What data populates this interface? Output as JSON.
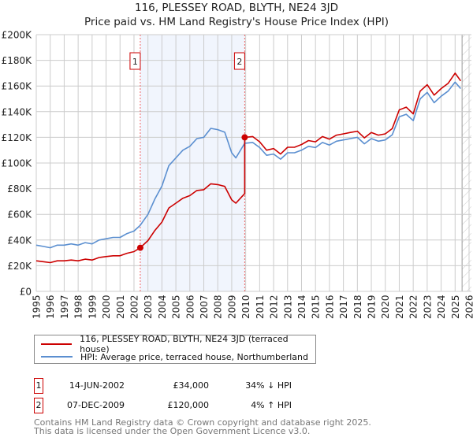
{
  "chart_data": {
    "type": "line",
    "title": "116, PLESSEY ROAD, BLYTH, NE24 3JD",
    "subtitle": "Price paid vs. HM Land Registry's House Price Index (HPI)",
    "xlim": [
      1995,
      2026
    ],
    "ylim": [
      0,
      200000
    ],
    "x_ticks": [
      "1995",
      "1996",
      "1997",
      "1998",
      "1999",
      "2000",
      "2001",
      "2002",
      "2003",
      "2004",
      "2005",
      "2006",
      "2007",
      "2008",
      "2009",
      "2010",
      "2011",
      "2012",
      "2013",
      "2014",
      "2015",
      "2016",
      "2017",
      "2018",
      "2019",
      "2020",
      "2021",
      "2022",
      "2023",
      "2024",
      "2025",
      "2026"
    ],
    "y_ticks": [
      {
        "value": 0,
        "label": "£0"
      },
      {
        "value": 20000,
        "label": "£20K"
      },
      {
        "value": 40000,
        "label": "£40K"
      },
      {
        "value": 60000,
        "label": "£60K"
      },
      {
        "value": 80000,
        "label": "£80K"
      },
      {
        "value": 100000,
        "label": "£100K"
      },
      {
        "value": 120000,
        "label": "£120K"
      },
      {
        "value": 140000,
        "label": "£140K"
      },
      {
        "value": 160000,
        "label": "£160K"
      },
      {
        "value": 180000,
        "label": "£180K"
      },
      {
        "value": 200000,
        "label": "£200K"
      }
    ],
    "grid": true,
    "shaded_period": [
      2002.45,
      2009.93
    ],
    "forecast_hatch_from": 2025.5,
    "series": [
      {
        "name": "116, PLESSEY ROAD, BLYTH, NE24 3JD (terraced house)",
        "color": "#cc0000",
        "x": [
          1995,
          1995.5,
          1996,
          1996.5,
          1997,
          1997.5,
          1998,
          1998.5,
          1999,
          1999.5,
          2000,
          2000.5,
          2001,
          2001.5,
          2002,
          2002.45,
          2003,
          2003.5,
          2004,
          2004.5,
          2005,
          2005.5,
          2006,
          2006.5,
          2007,
          2007.5,
          2008,
          2008.5,
          2009,
          2009.3,
          2009.93,
          2009.93,
          2010.5,
          2011,
          2011.5,
          2012,
          2012.5,
          2013,
          2013.5,
          2014,
          2014.5,
          2015,
          2015.5,
          2016,
          2016.5,
          2017,
          2017.5,
          2018,
          2018.5,
          2019,
          2019.5,
          2020,
          2020.5,
          2021,
          2021.5,
          2022,
          2022.5,
          2023,
          2023.5,
          2024,
          2024.5,
          2025,
          2025.4
        ],
        "y": [
          23800,
          23100,
          22400,
          23800,
          23800,
          24400,
          23800,
          25100,
          24400,
          26400,
          27100,
          27700,
          27700,
          29700,
          31000,
          34000,
          39600,
          47500,
          54000,
          65000,
          68700,
          72600,
          74600,
          78600,
          79200,
          83800,
          83200,
          81800,
          71300,
          68700,
          76200,
          120000,
          120600,
          116500,
          110000,
          111300,
          107000,
          112300,
          112300,
          114400,
          117500,
          116500,
          120600,
          118600,
          121700,
          122700,
          123800,
          124800,
          119600,
          123800,
          121700,
          122700,
          126900,
          141400,
          143500,
          138300,
          156000,
          161000,
          152900,
          158000,
          162000,
          170000,
          164000
        ]
      },
      {
        "name": "HPI: Average price, terraced house, Northumberland",
        "color": "#5b8fd0",
        "x": [
          1995,
          1995.5,
          1996,
          1996.5,
          1997,
          1997.5,
          1998,
          1998.5,
          1999,
          1999.5,
          2000,
          2000.5,
          2001,
          2001.5,
          2002,
          2002.45,
          2003,
          2003.5,
          2004,
          2004.5,
          2005,
          2005.5,
          2006,
          2006.5,
          2007,
          2007.5,
          2008,
          2008.5,
          2009,
          2009.3,
          2009.93,
          2010.5,
          2011,
          2011.5,
          2012,
          2012.5,
          2013,
          2013.5,
          2014,
          2014.5,
          2015,
          2015.5,
          2016,
          2016.5,
          2017,
          2017.5,
          2018,
          2018.5,
          2019,
          2019.5,
          2020,
          2020.5,
          2021,
          2021.5,
          2022,
          2022.5,
          2023,
          2023.5,
          2024,
          2024.5,
          2025,
          2025.4
        ],
        "y": [
          36000,
          35000,
          34000,
          36000,
          36000,
          37000,
          36000,
          38000,
          37000,
          40000,
          41000,
          42000,
          42000,
          45000,
          47000,
          51500,
          60000,
          72000,
          82000,
          98000,
          104000,
          110000,
          113000,
          119000,
          120000,
          127000,
          126000,
          124000,
          108000,
          104000,
          115400,
          116000,
          112000,
          106000,
          107000,
          103000,
          108000,
          108000,
          110000,
          113000,
          112000,
          116000,
          114000,
          117000,
          118000,
          119000,
          120000,
          115000,
          119000,
          117000,
          118000,
          122000,
          136000,
          138000,
          133000,
          150000,
          155000,
          147000,
          152000,
          156000,
          163000,
          158000
        ]
      }
    ],
    "sales": [
      {
        "num": "1",
        "x": 2002.45,
        "y": 34000,
        "date": "14-JUN-2002",
        "price": "£34,000",
        "hpi_diff": "34% ↓ HPI"
      },
      {
        "num": "2",
        "x": 2009.93,
        "y": 120000,
        "date": "07-DEC-2009",
        "price": "£120,000",
        "hpi_diff": "4% ↑ HPI"
      }
    ]
  },
  "legend": {
    "red": "116, PLESSEY ROAD, BLYTH, NE24 3JD (terraced house)",
    "blue": "HPI: Average price, terraced house, Northumberland"
  },
  "footer": {
    "line1": "Contains HM Land Registry data © Crown copyright and database right 2025.",
    "line2": "This data is licensed under the Open Government Licence v3.0."
  }
}
